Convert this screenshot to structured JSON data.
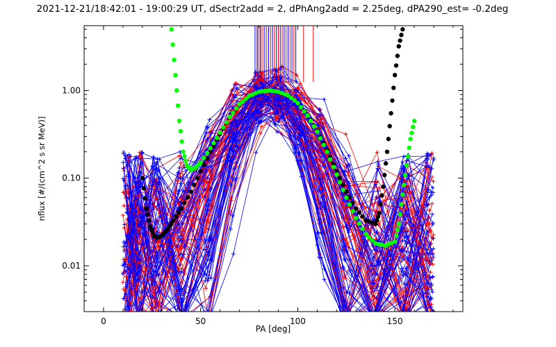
{
  "chart_data": {
    "type": "scatter",
    "title": "2021-12-21/18:42:01 - 19:00:29 UT, dSectr2add = 2, dPhAng2add = 2.25deg, dPA290_est=  -0.2deg",
    "xlabel": "PA [deg]",
    "ylabel": "nflux [#/(cm^2 s sr MeV)]",
    "xlim": [
      -10,
      185
    ],
    "ylim": [
      0.003,
      5.5
    ],
    "yscale": "log",
    "xticks": [
      0,
      50,
      100,
      150
    ],
    "xtick_labels": [
      "0",
      "50",
      "100",
      "150"
    ],
    "yticks": [
      0.01,
      0.1,
      1.0
    ],
    "ytick_labels": [
      "0.01",
      "0.10",
      "1.00"
    ],
    "grid": false,
    "legend": "none",
    "colors": {
      "red_series": "#ff0000",
      "blue_series": "#0000ff",
      "fit_black": "#000000",
      "fit_green": "#00ff00"
    },
    "series": [
      {
        "color": "black",
        "style": "dots",
        "x": [
          20,
          22,
          24,
          26,
          28,
          30,
          33,
          36,
          40,
          45,
          50,
          55,
          60,
          65,
          70,
          75,
          80,
          85,
          90,
          95,
          100,
          105,
          110,
          115,
          120,
          125,
          130,
          135,
          140,
          142,
          144,
          146,
          148,
          150,
          152,
          154
        ],
        "y": [
          0.1,
          0.045,
          0.028,
          0.022,
          0.021,
          0.022,
          0.026,
          0.033,
          0.045,
          0.07,
          0.12,
          0.2,
          0.32,
          0.5,
          0.7,
          0.87,
          0.97,
          1.0,
          0.97,
          0.88,
          0.72,
          0.53,
          0.35,
          0.21,
          0.12,
          0.07,
          0.045,
          0.033,
          0.03,
          0.04,
          0.08,
          0.2,
          0.55,
          1.5,
          3.2,
          5.0
        ]
      },
      {
        "color": "green",
        "style": "dots",
        "x": [
          35,
          37,
          39,
          41,
          43,
          45,
          47,
          50,
          55,
          60,
          65,
          70,
          75,
          80,
          85,
          90,
          95,
          100,
          105,
          110,
          115,
          120,
          125,
          130,
          135,
          140,
          145,
          150,
          152,
          154,
          156,
          158,
          160
        ],
        "y": [
          5.0,
          1.5,
          0.45,
          0.2,
          0.14,
          0.125,
          0.13,
          0.15,
          0.22,
          0.33,
          0.5,
          0.7,
          0.87,
          0.97,
          1.0,
          0.97,
          0.88,
          0.72,
          0.52,
          0.34,
          0.2,
          0.11,
          0.06,
          0.035,
          0.023,
          0.018,
          0.017,
          0.019,
          0.03,
          0.065,
          0.14,
          0.28,
          0.45
        ]
      }
    ],
    "spectra_lines": {
      "count_red": 50,
      "count_blue": 70,
      "x_samples": [
        12,
        18,
        27,
        40,
        54,
        67,
        80,
        90,
        100,
        112,
        125,
        140,
        155,
        168
      ],
      "peak_range": [
        0.6,
        1.2
      ],
      "edge_range": [
        0.003,
        0.4
      ]
    },
    "top_marks": {
      "red_x": [
        79,
        80.5,
        82,
        84,
        86,
        88,
        90,
        92,
        94,
        96,
        98,
        103,
        108
      ],
      "blue_x": [
        78,
        79.5,
        81,
        83,
        85,
        87,
        89,
        91,
        93,
        95,
        97,
        99
      ]
    }
  }
}
